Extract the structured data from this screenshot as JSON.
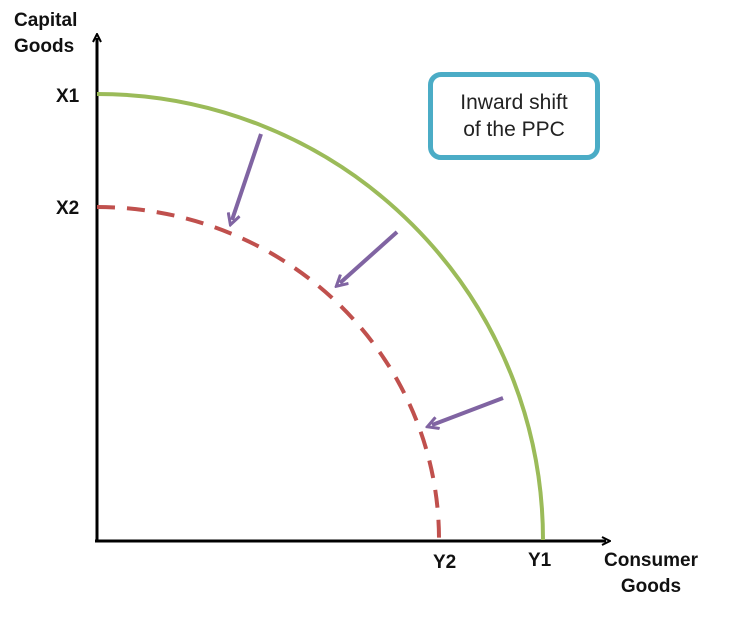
{
  "diagram": {
    "y_axis_title": "Capital\nGoods",
    "x_axis_title": "Consumer\nGoods",
    "y_ticks": [
      "X1",
      "X2"
    ],
    "x_ticks": [
      "Y2",
      "Y1"
    ],
    "callout_text": "Inward shift\nof the PPC",
    "colors": {
      "original_ppc": "#9bbb59",
      "new_ppc": "#c0504d",
      "arrows": "#8064a2",
      "callout_border": "#4bacc6",
      "axes": "#000000"
    }
  }
}
